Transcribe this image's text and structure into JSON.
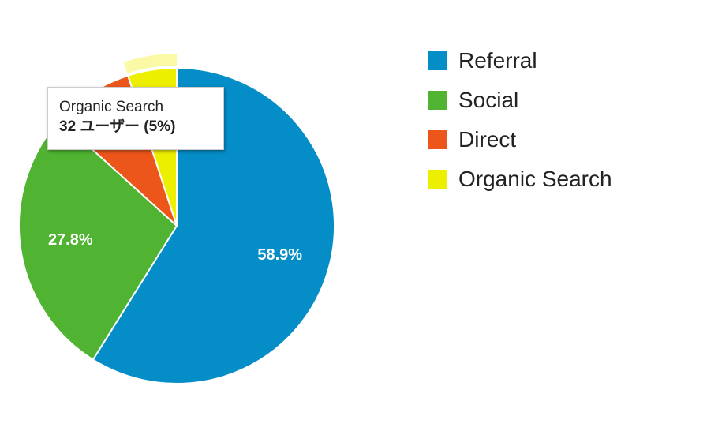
{
  "chart_data": {
    "type": "pie",
    "slices": [
      {
        "name": "Referral",
        "value": 58.9,
        "label": "58.9%",
        "color": "#058dc7"
      },
      {
        "name": "Social",
        "value": 27.8,
        "label": "27.8%",
        "color": "#50b432"
      },
      {
        "name": "Direct",
        "value": 8.3,
        "label": "",
        "color": "#ed561b"
      },
      {
        "name": "Organic Search",
        "value": 5.0,
        "label": "",
        "color": "#edef00",
        "highlighted": true
      }
    ],
    "legend_position": "right",
    "tooltip": {
      "series": "Organic Search",
      "value_text": "32 ユーザー (5%)"
    }
  }
}
